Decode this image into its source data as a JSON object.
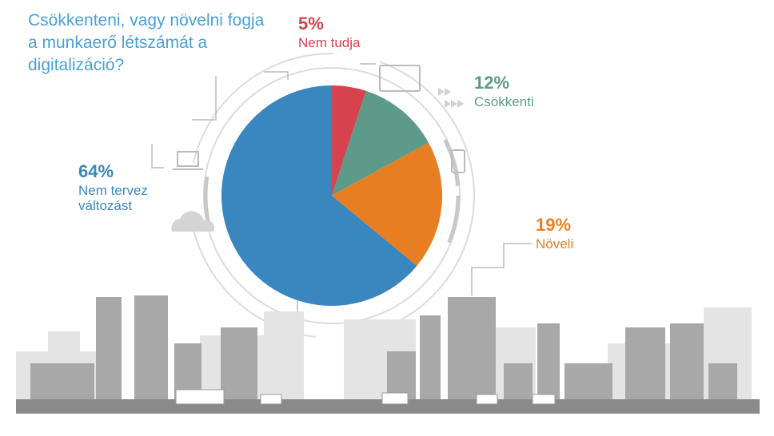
{
  "chart_data": {
    "type": "pie",
    "title": "Csökkenteni, vagy növelni fogja a munkaerő létszámát a digitalizáció?",
    "categories": [
      "Nem tudja",
      "Csökkenti",
      "Növeli",
      "Nem tervez változást"
    ],
    "values": [
      5,
      12,
      19,
      64
    ],
    "value_labels": [
      "5%",
      "12%",
      "19%",
      "64%"
    ],
    "colors": [
      "#d6424e",
      "#5e9a8a",
      "#e87e22",
      "#3a87bf"
    ]
  }
}
